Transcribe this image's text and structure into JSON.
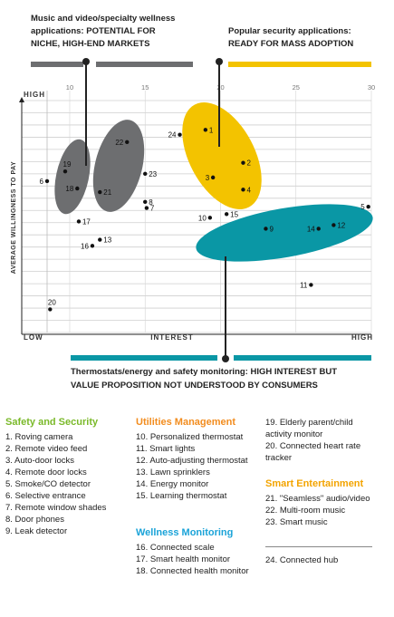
{
  "chart_data": {
    "type": "scatter",
    "xlabel": "INTEREST",
    "xlabel_low": "LOW",
    "xlabel_high": "HIGH",
    "ylabel": "AVERAGE WILLINGNESS TO PAY",
    "ylabel_high": "HIGH",
    "xlim": [
      8.5,
      30
    ],
    "xticks": [
      "10",
      "15",
      "20",
      "25",
      "30"
    ],
    "points": [
      {
        "label": "1",
        "x": 19.0,
        "y": 2.4
      },
      {
        "label": "2",
        "x": 21.5,
        "y": 5.1
      },
      {
        "label": "3",
        "x": 19.5,
        "y": 6.3
      },
      {
        "label": "4",
        "x": 21.5,
        "y": 7.3
      },
      {
        "label": "5",
        "x": 29.8,
        "y": 8.7
      },
      {
        "label": "6",
        "x": 8.5,
        "y": 6.6
      },
      {
        "label": "7",
        "x": 15.1,
        "y": 8.8
      },
      {
        "label": "8",
        "x": 15.0,
        "y": 8.3
      },
      {
        "label": "9",
        "x": 23.0,
        "y": 10.5
      },
      {
        "label": "10",
        "x": 19.3,
        "y": 9.6
      },
      {
        "label": "11",
        "x": 26.0,
        "y": 15.1
      },
      {
        "label": "12",
        "x": 27.5,
        "y": 10.2
      },
      {
        "label": "13",
        "x": 12.0,
        "y": 11.4
      },
      {
        "label": "14",
        "x": 26.5,
        "y": 10.5
      },
      {
        "label": "15",
        "x": 20.4,
        "y": 9.3
      },
      {
        "label": "16",
        "x": 11.5,
        "y": 11.9
      },
      {
        "label": "17",
        "x": 10.6,
        "y": 9.9
      },
      {
        "label": "18",
        "x": 10.5,
        "y": 7.2
      },
      {
        "label": "19",
        "x": 9.7,
        "y": 5.8
      },
      {
        "label": "20",
        "x": 8.7,
        "y": 17.1
      },
      {
        "label": "21",
        "x": 12.0,
        "y": 7.5
      },
      {
        "label": "22",
        "x": 13.8,
        "y": 3.4
      },
      {
        "label": "23",
        "x": 15.0,
        "y": 6.0
      },
      {
        "label": "24",
        "x": 17.3,
        "y": 2.8
      }
    ],
    "clusters": [
      {
        "name": "music-video-wellness",
        "color": "#6d6e70"
      },
      {
        "name": "security",
        "color": "#f3c300"
      },
      {
        "name": "thermostats-energy",
        "color": "#0a97a5"
      }
    ]
  },
  "annotations": {
    "top_left_line1": "Music and video/specialty wellness",
    "top_left_line2": "applications: POTENTIAL FOR",
    "top_left_line3": "NICHE, HIGH-END MARKETS",
    "top_right_line1": "Popular security applications:",
    "top_right_line2": "READY FOR MASS ADOPTION",
    "bottom_line1": "Thermostats/energy and safety monitoring: HIGH INTEREST BUT",
    "bottom_line2": "VALUE PROPOSITION NOT UNDERSTOOD BY CONSUMERS"
  },
  "colors": {
    "safety": "#7ab929",
    "utilities": "#f28c1e",
    "wellness": "#1aa3d8",
    "entertainment": "#f3a400",
    "gray": "#6d6e70",
    "yellow": "#f3c300",
    "teal": "#0a97a5"
  },
  "legend": {
    "safety_title": "Safety and Security",
    "safety_items": [
      "1. Roving camera",
      "2. Remote video feed",
      "3. Auto-door locks",
      "4. Remote door locks",
      "5. Smoke/CO detector",
      "6. Selective entrance",
      "7. Remote window shades",
      "8. Door phones",
      "9. Leak detector"
    ],
    "utilities_title": "Utilities Management",
    "utilities_items": [
      "10. Personalized thermostat",
      "11. Smart lights",
      "12. Auto-adjusting thermostat",
      "13. Lawn sprinklers",
      "14. Energy monitor",
      "15. Learning thermostat"
    ],
    "wellness_title": "Wellness Monitoring",
    "wellness_items": [
      "16. Connected scale",
      "17. Smart health monitor",
      "18. Connected health monitor",
      "19. Elderly parent/child activity monitor",
      "20. Connected heart rate tracker"
    ],
    "entertainment_title": "Smart Entertainment",
    "entertainment_items": [
      "21. \"Seamless\" audio/video",
      "22. Multi-room music",
      "23. Smart music"
    ],
    "other_items": [
      "24. Connected hub"
    ]
  }
}
